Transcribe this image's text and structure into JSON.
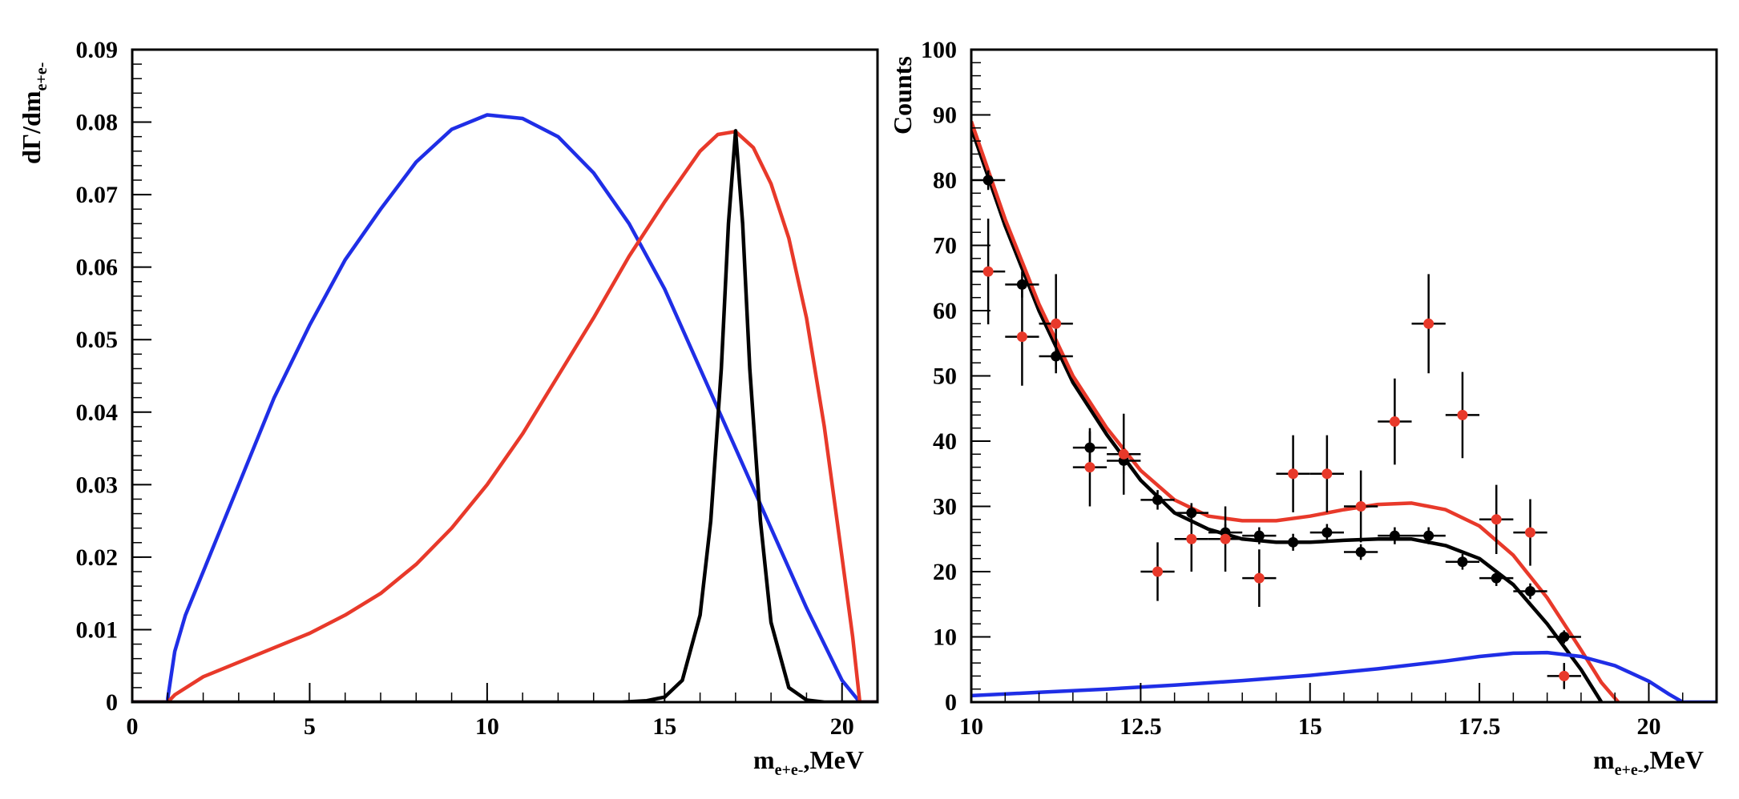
{
  "chart_data": [
    {
      "type": "line",
      "panel": "left",
      "ylabel": "dΓ/dm",
      "ylabel_sub": "e+e-",
      "xlabel": "m",
      "xlabel_sub": "e+e-",
      "xlabel_unit": ",MeV",
      "xlim": [
        0,
        21
      ],
      "ylim": [
        0,
        0.09
      ],
      "xticks": [
        0,
        5,
        10,
        15,
        20
      ],
      "xtick_labels": [
        "0",
        "5",
        "10",
        "15",
        "20"
      ],
      "yticks": [
        0,
        0.01,
        0.02,
        0.03,
        0.04,
        0.05,
        0.06,
        0.07,
        0.08,
        0.09
      ],
      "ytick_labels": [
        "0",
        "0.01",
        "0.02",
        "0.03",
        "0.04",
        "0.05",
        "0.06",
        "0.07",
        "0.08",
        "0.09"
      ],
      "series": [
        {
          "name": "blue",
          "color": "#1f2ee6",
          "x": [
            0,
            1.0,
            1.0,
            1.2,
            1.5,
            2,
            2.5,
            3,
            4,
            5,
            6,
            7,
            8,
            9,
            10,
            11,
            12,
            13,
            14,
            15,
            16,
            17,
            18,
            19,
            20,
            20.5,
            21
          ],
          "y": [
            0,
            0,
            0.0005,
            0.007,
            0.012,
            0.018,
            0.024,
            0.03,
            0.042,
            0.052,
            0.061,
            0.068,
            0.0745,
            0.079,
            0.081,
            0.0805,
            0.078,
            0.073,
            0.066,
            0.057,
            0.046,
            0.035,
            0.024,
            0.013,
            0.003,
            0.0,
            0.0
          ]
        },
        {
          "name": "red",
          "color": "#e8392a",
          "x": [
            0,
            1.0,
            1.2,
            2,
            3,
            4,
            5,
            6,
            7,
            8,
            9,
            10,
            11,
            12,
            13,
            14,
            15,
            15.5,
            16,
            16.5,
            17,
            17.5,
            18,
            18.5,
            19,
            19.5,
            20,
            20.3,
            20.5,
            21
          ],
          "y": [
            0,
            0,
            0.001,
            0.0035,
            0.0055,
            0.0075,
            0.0095,
            0.012,
            0.015,
            0.019,
            0.024,
            0.03,
            0.037,
            0.045,
            0.053,
            0.0615,
            0.069,
            0.0725,
            0.076,
            0.0783,
            0.0787,
            0.0765,
            0.0715,
            0.064,
            0.053,
            0.038,
            0.02,
            0.009,
            0.0,
            0.0
          ]
        },
        {
          "name": "black",
          "color": "#000000",
          "x": [
            0,
            13.8,
            14.5,
            15,
            15.5,
            16,
            16.3,
            16.6,
            16.8,
            17.0,
            17.2,
            17.4,
            17.7,
            18,
            18.5,
            19,
            19.5,
            21
          ],
          "y": [
            0,
            0,
            0.0002,
            0.0007,
            0.003,
            0.012,
            0.025,
            0.046,
            0.066,
            0.0788,
            0.066,
            0.046,
            0.025,
            0.011,
            0.002,
            0.0003,
            0,
            0
          ]
        }
      ]
    },
    {
      "type": "scatter",
      "panel": "right",
      "ylabel": "Counts",
      "xlabel": "m",
      "xlabel_sub": "e+e-",
      "xlabel_unit": ",MeV",
      "xlim": [
        10,
        21
      ],
      "ylim": [
        0,
        100
      ],
      "xticks": [
        10,
        12.5,
        15,
        17.5,
        20
      ],
      "xtick_labels": [
        "10",
        "12.5",
        "15",
        "17.5",
        "20"
      ],
      "yticks": [
        0,
        10,
        20,
        30,
        40,
        50,
        60,
        70,
        80,
        90,
        100
      ],
      "ytick_labels": [
        "0",
        "10",
        "20",
        "30",
        "40",
        "50",
        "60",
        "70",
        "80",
        "90",
        "100"
      ],
      "bin_half_width": 0.25,
      "points_black": {
        "color": "#000000",
        "x": [
          10.25,
          10.75,
          11.25,
          11.75,
          12.25,
          12.75,
          13.25,
          13.75,
          14.25,
          14.75,
          15.25,
          15.75,
          16.25,
          16.75,
          17.25,
          17.75,
          18.25,
          18.75
        ],
        "y": [
          80,
          64,
          53,
          39,
          37,
          31,
          29,
          26,
          25.5,
          24.5,
          26,
          23,
          25.5,
          25.5,
          21.5,
          19,
          17,
          10
        ],
        "err": [
          1.5,
          2.0,
          2.0,
          2.5,
          2.0,
          1.5,
          1.5,
          1.3,
          1.3,
          1.3,
          1.3,
          1.2,
          1.3,
          1.3,
          1.2,
          1.2,
          1.2,
          1.0
        ]
      },
      "points_red": {
        "color": "#e8392a",
        "x": [
          10.25,
          10.75,
          11.25,
          11.75,
          12.25,
          12.75,
          13.25,
          13.75,
          14.25,
          14.75,
          15.25,
          15.75,
          16.25,
          16.75,
          17.25,
          17.75,
          18.25,
          18.75
        ],
        "y": [
          66,
          56,
          58,
          36,
          38,
          20,
          25,
          25,
          19,
          35,
          35,
          30,
          43,
          58,
          44,
          28,
          26,
          4
        ],
        "err": [
          8.1,
          7.5,
          7.6,
          6.0,
          6.2,
          4.5,
          5.0,
          5.0,
          4.4,
          5.9,
          5.9,
          5.5,
          6.6,
          7.6,
          6.6,
          5.3,
          5.1,
          2.0
        ]
      },
      "series": [
        {
          "name": "black-fit",
          "color": "#000000",
          "x": [
            10,
            10.5,
            11,
            11.5,
            12,
            12.5,
            13,
            13.5,
            14,
            14.5,
            15,
            15.5,
            16,
            16.5,
            17,
            17.5,
            18,
            18.5,
            19,
            19.3
          ],
          "y": [
            88,
            73,
            60,
            49,
            41,
            34,
            29,
            26.5,
            25,
            24.5,
            24.5,
            24.8,
            25,
            25,
            24,
            22,
            18,
            12,
            5,
            0
          ]
        },
        {
          "name": "red-fit",
          "color": "#e8392a",
          "x": [
            10,
            10.5,
            11,
            11.5,
            12,
            12.5,
            13,
            13.5,
            14,
            14.5,
            15,
            15.5,
            16,
            16.5,
            17,
            17.5,
            18,
            18.5,
            19,
            19.3,
            19.55
          ],
          "y": [
            89,
            74,
            61,
            50,
            42,
            35.5,
            31,
            28.5,
            27.8,
            27.8,
            28.5,
            29.5,
            30.3,
            30.5,
            29.5,
            27,
            22.5,
            16,
            8,
            3,
            0
          ]
        },
        {
          "name": "blue-fit",
          "color": "#1f2ee6",
          "x": [
            10,
            11,
            12,
            13,
            14,
            15,
            16,
            17,
            17.5,
            18,
            18.5,
            19,
            19.5,
            20,
            20.3,
            20.5,
            21
          ],
          "y": [
            1,
            1.5,
            2,
            2.6,
            3.3,
            4.1,
            5.1,
            6.3,
            7.0,
            7.5,
            7.6,
            7.0,
            5.6,
            3.2,
            1.2,
            0,
            0
          ]
        }
      ]
    }
  ]
}
